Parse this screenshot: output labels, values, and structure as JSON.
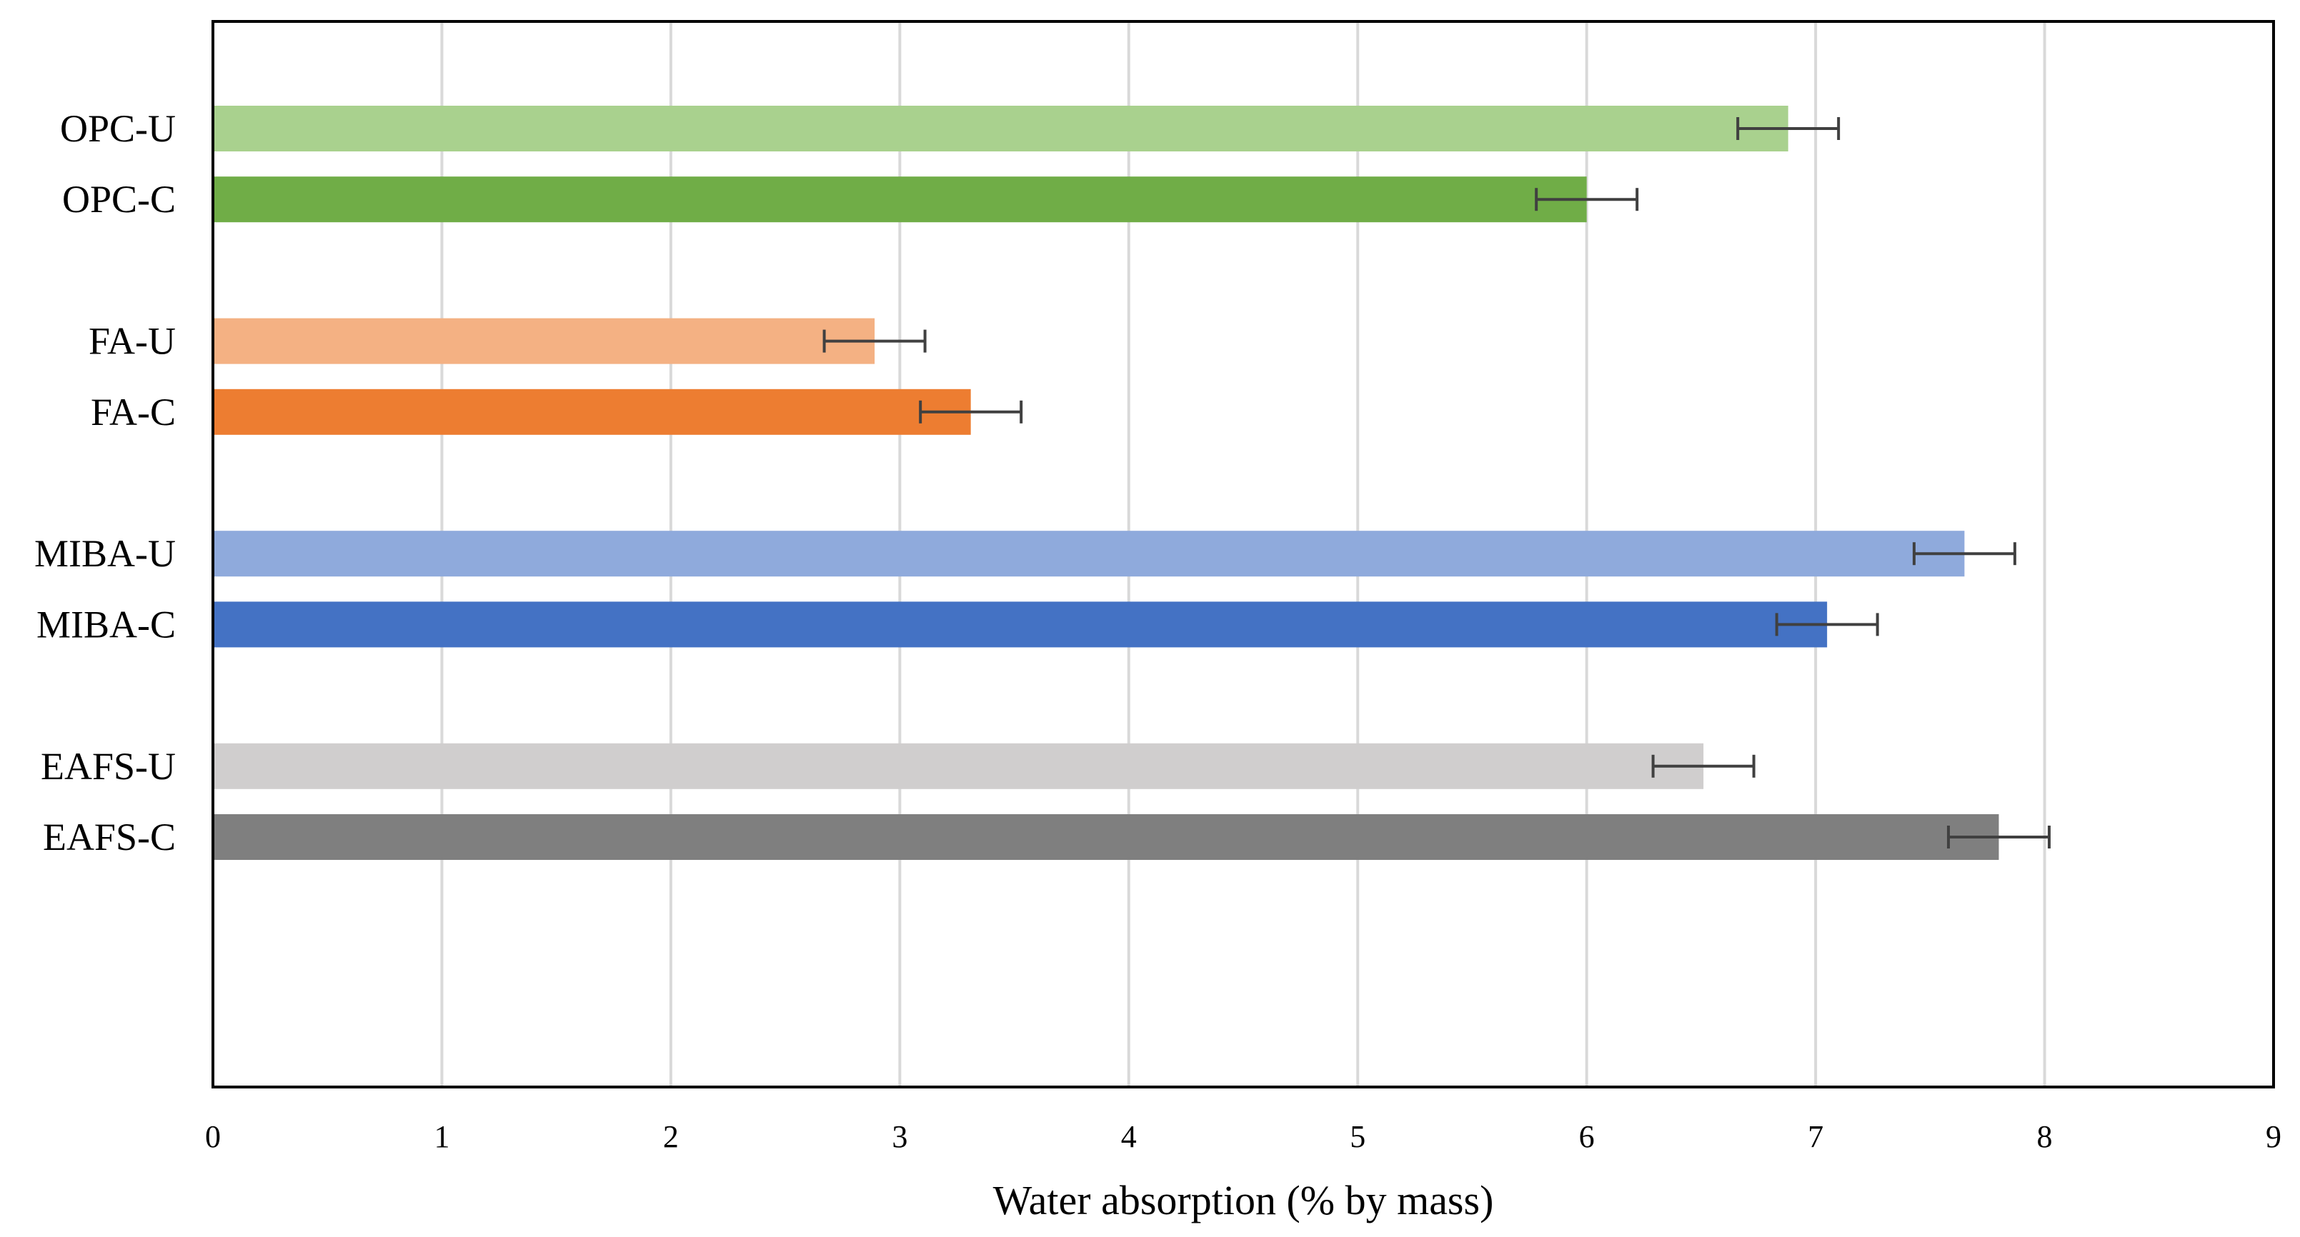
{
  "chart_data": {
    "type": "bar",
    "orientation": "horizontal",
    "title": "",
    "xlabel": "Water absorption (% by mass)",
    "ylabel": "",
    "xlim": [
      0,
      9
    ],
    "x_ticks": [
      "0",
      "1",
      "2",
      "3",
      "4",
      "5",
      "6",
      "7",
      "8",
      "9"
    ],
    "grid": "vertical",
    "groups": [
      {
        "name": "OPC",
        "bars": [
          {
            "label": "OPC-U",
            "value": 6.88,
            "error": 0.22,
            "color": "#a9d18e"
          },
          {
            "label": "OPC-C",
            "value": 6.0,
            "error": 0.22,
            "color": "#70ad47"
          }
        ]
      },
      {
        "name": "FA",
        "bars": [
          {
            "label": "FA-U",
            "value": 2.89,
            "error": 0.22,
            "color": "#f4b183"
          },
          {
            "label": "FA-C",
            "value": 3.31,
            "error": 0.22,
            "color": "#ed7d31"
          }
        ]
      },
      {
        "name": "MIBA",
        "bars": [
          {
            "label": "MIBA-U",
            "value": 7.65,
            "error": 0.22,
            "color": "#8faadc"
          },
          {
            "label": "MIBA-C",
            "value": 7.05,
            "error": 0.22,
            "color": "#4472c4"
          }
        ]
      },
      {
        "name": "EAFS",
        "bars": [
          {
            "label": "EAFS-U",
            "value": 6.51,
            "error": 0.22,
            "color": "#d0cece"
          },
          {
            "label": "EAFS-C",
            "value": 7.8,
            "error": 0.22,
            "color": "#7f7f7f"
          }
        ]
      }
    ]
  }
}
